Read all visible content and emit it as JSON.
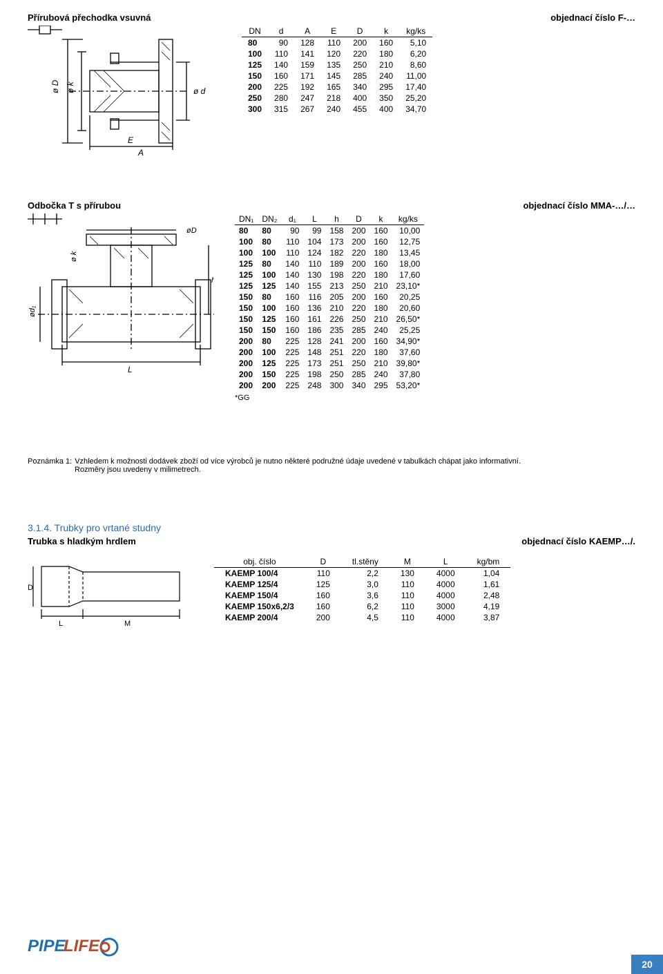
{
  "section1": {
    "title": "Přírubová přechodka vsuvná",
    "order_label": "objednací číslo F-…",
    "headers": [
      "DN",
      "d",
      "A",
      "E",
      "D",
      "k",
      "kg/ks"
    ],
    "rows": [
      [
        "80",
        "90",
        "128",
        "110",
        "200",
        "160",
        "5,10"
      ],
      [
        "100",
        "110",
        "141",
        "120",
        "220",
        "180",
        "6,20"
      ],
      [
        "125",
        "140",
        "159",
        "135",
        "250",
        "210",
        "8,60"
      ],
      [
        "150",
        "160",
        "171",
        "145",
        "285",
        "240",
        "11,00"
      ],
      [
        "200",
        "225",
        "192",
        "165",
        "340",
        "295",
        "17,40"
      ],
      [
        "250",
        "280",
        "247",
        "218",
        "400",
        "350",
        "25,20"
      ],
      [
        "300",
        "315",
        "267",
        "240",
        "455",
        "400",
        "34,70"
      ]
    ],
    "diagram_labels": {
      "E": "E",
      "A": "A",
      "phi_d": "ø d",
      "phi_D": "ø D",
      "phi_k": "ø k"
    }
  },
  "section2": {
    "title": "Odbočka T s přírubou",
    "order_label": "objednací číslo MMA-…/…",
    "headers": [
      "DN₁",
      "DN₂",
      "d₁",
      "L",
      "h",
      "D",
      "k",
      "kg/ks"
    ],
    "rows": [
      [
        "80",
        "80",
        "90",
        "99",
        "158",
        "200",
        "160",
        "10,00"
      ],
      [
        "100",
        "80",
        "110",
        "104",
        "173",
        "200",
        "160",
        "12,75"
      ],
      [
        "100",
        "100",
        "110",
        "124",
        "182",
        "220",
        "180",
        "13,45"
      ],
      [
        "125",
        "80",
        "140",
        "110",
        "189",
        "200",
        "160",
        "18,00"
      ],
      [
        "125",
        "100",
        "140",
        "130",
        "198",
        "220",
        "180",
        "17,60"
      ],
      [
        "125",
        "125",
        "140",
        "155",
        "213",
        "250",
        "210",
        "23,10*"
      ],
      [
        "150",
        "80",
        "160",
        "116",
        "205",
        "200",
        "160",
        "20,25"
      ],
      [
        "150",
        "100",
        "160",
        "136",
        "210",
        "220",
        "180",
        "20,60"
      ],
      [
        "150",
        "125",
        "160",
        "161",
        "226",
        "250",
        "210",
        "26,50*"
      ],
      [
        "150",
        "150",
        "160",
        "186",
        "235",
        "285",
        "240",
        "25,25"
      ],
      [
        "200",
        "80",
        "225",
        "128",
        "241",
        "200",
        "160",
        "34,90*"
      ],
      [
        "200",
        "100",
        "225",
        "148",
        "251",
        "220",
        "180",
        "37,60"
      ],
      [
        "200",
        "125",
        "225",
        "173",
        "251",
        "250",
        "210",
        "39,80*"
      ],
      [
        "200",
        "150",
        "225",
        "198",
        "250",
        "285",
        "240",
        "37,80"
      ],
      [
        "200",
        "200",
        "225",
        "248",
        "300",
        "340",
        "295",
        "53,20*"
      ]
    ],
    "star": "*GG",
    "diagram_labels": {
      "phiD": "øD",
      "phik": "ø k",
      "phi_d1": "ød₁",
      "L": "L",
      "h": "h"
    }
  },
  "poznamka": {
    "label": "Poznámka 1:",
    "text1": "Vzhledem k možnosti dodávek zboží od více výrobců je nutno některé podružné údaje uvedené v tabulkách chápat jako informativní.",
    "text2": "Rozměry jsou uvedeny v milimetrech."
  },
  "section3": {
    "heading": "3.1.4. Trubky pro vrtané studny",
    "subtitle": "Trubka s hladkým hrdlem",
    "order_label": "objednací číslo KAEMP…/.",
    "headers": [
      "obj. číslo",
      "D",
      "tl.stěny",
      "M",
      "L",
      "kg/bm"
    ],
    "rows": [
      [
        "KAEMP 100/4",
        "110",
        "2,2",
        "130",
        "4000",
        "1,04"
      ],
      [
        "KAEMP 125/4",
        "125",
        "3,0",
        "110",
        "4000",
        "1,61"
      ],
      [
        "KAEMP 150/4",
        "160",
        "3,6",
        "110",
        "4000",
        "2,48"
      ],
      [
        "KAEMP 150x6,2/3",
        "160",
        "6,2",
        "110",
        "3000",
        "4,19"
      ],
      [
        "KAEMP 200/4",
        "200",
        "4,5",
        "110",
        "4000",
        "3,87"
      ]
    ],
    "diagram_labels": {
      "D": "D",
      "L": "L",
      "M": "M"
    }
  },
  "logo": {
    "brand1": "PIPE",
    "brand2": "LIFE",
    "colors": {
      "pipe": "#1f6fb0",
      "life": "#b54a2d"
    }
  },
  "page_number": "20",
  "style": {
    "blue": "#2a6bb3",
    "page_badge_bg": "#3a7fbf"
  }
}
